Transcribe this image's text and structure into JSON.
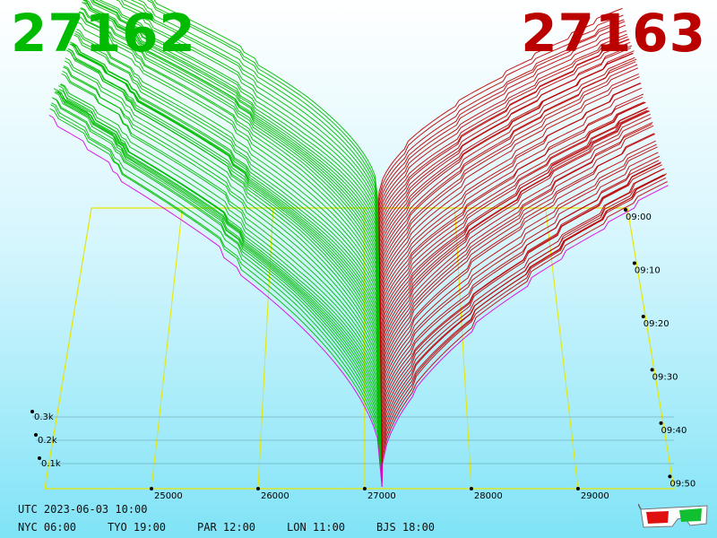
{
  "header": {
    "bid_price": "27162",
    "ask_price": "27163",
    "bid_color": "#00bb00",
    "ask_color": "#bb0000"
  },
  "footer": {
    "utc_time": "UTC 2023-06-03 10:00",
    "cities": [
      {
        "label": "NYC 06:00"
      },
      {
        "label": "TYO 19:00"
      },
      {
        "label": "PAR 12:00"
      },
      {
        "label": "LON 11:00"
      },
      {
        "label": "BJS 18:00"
      }
    ]
  },
  "icons": {
    "glasses": "3d-glasses-icon"
  },
  "chart_data": {
    "type": "area",
    "subtype": "3d order-book depth surface",
    "x": {
      "label": "",
      "ticks": [
        25000,
        26000,
        27000,
        28000,
        29000
      ],
      "range": [
        24000,
        29900
      ]
    },
    "y": {
      "label": "",
      "ticks": [
        "09:00",
        "09:10",
        "09:20",
        "09:30",
        "09:40",
        "09:50"
      ]
    },
    "z": {
      "label": "",
      "ticks": [
        "0.1k",
        "0.2k",
        "0.3k"
      ]
    },
    "series": [
      {
        "side": "bid",
        "color": "#00bb00"
      },
      {
        "side": "ask",
        "color": "#bb0000"
      }
    ],
    "mid_price": 27162,
    "slice_count": 60,
    "latest_slice_color": "#dd00dd",
    "grid_color": "#e6e600",
    "grid": true
  }
}
